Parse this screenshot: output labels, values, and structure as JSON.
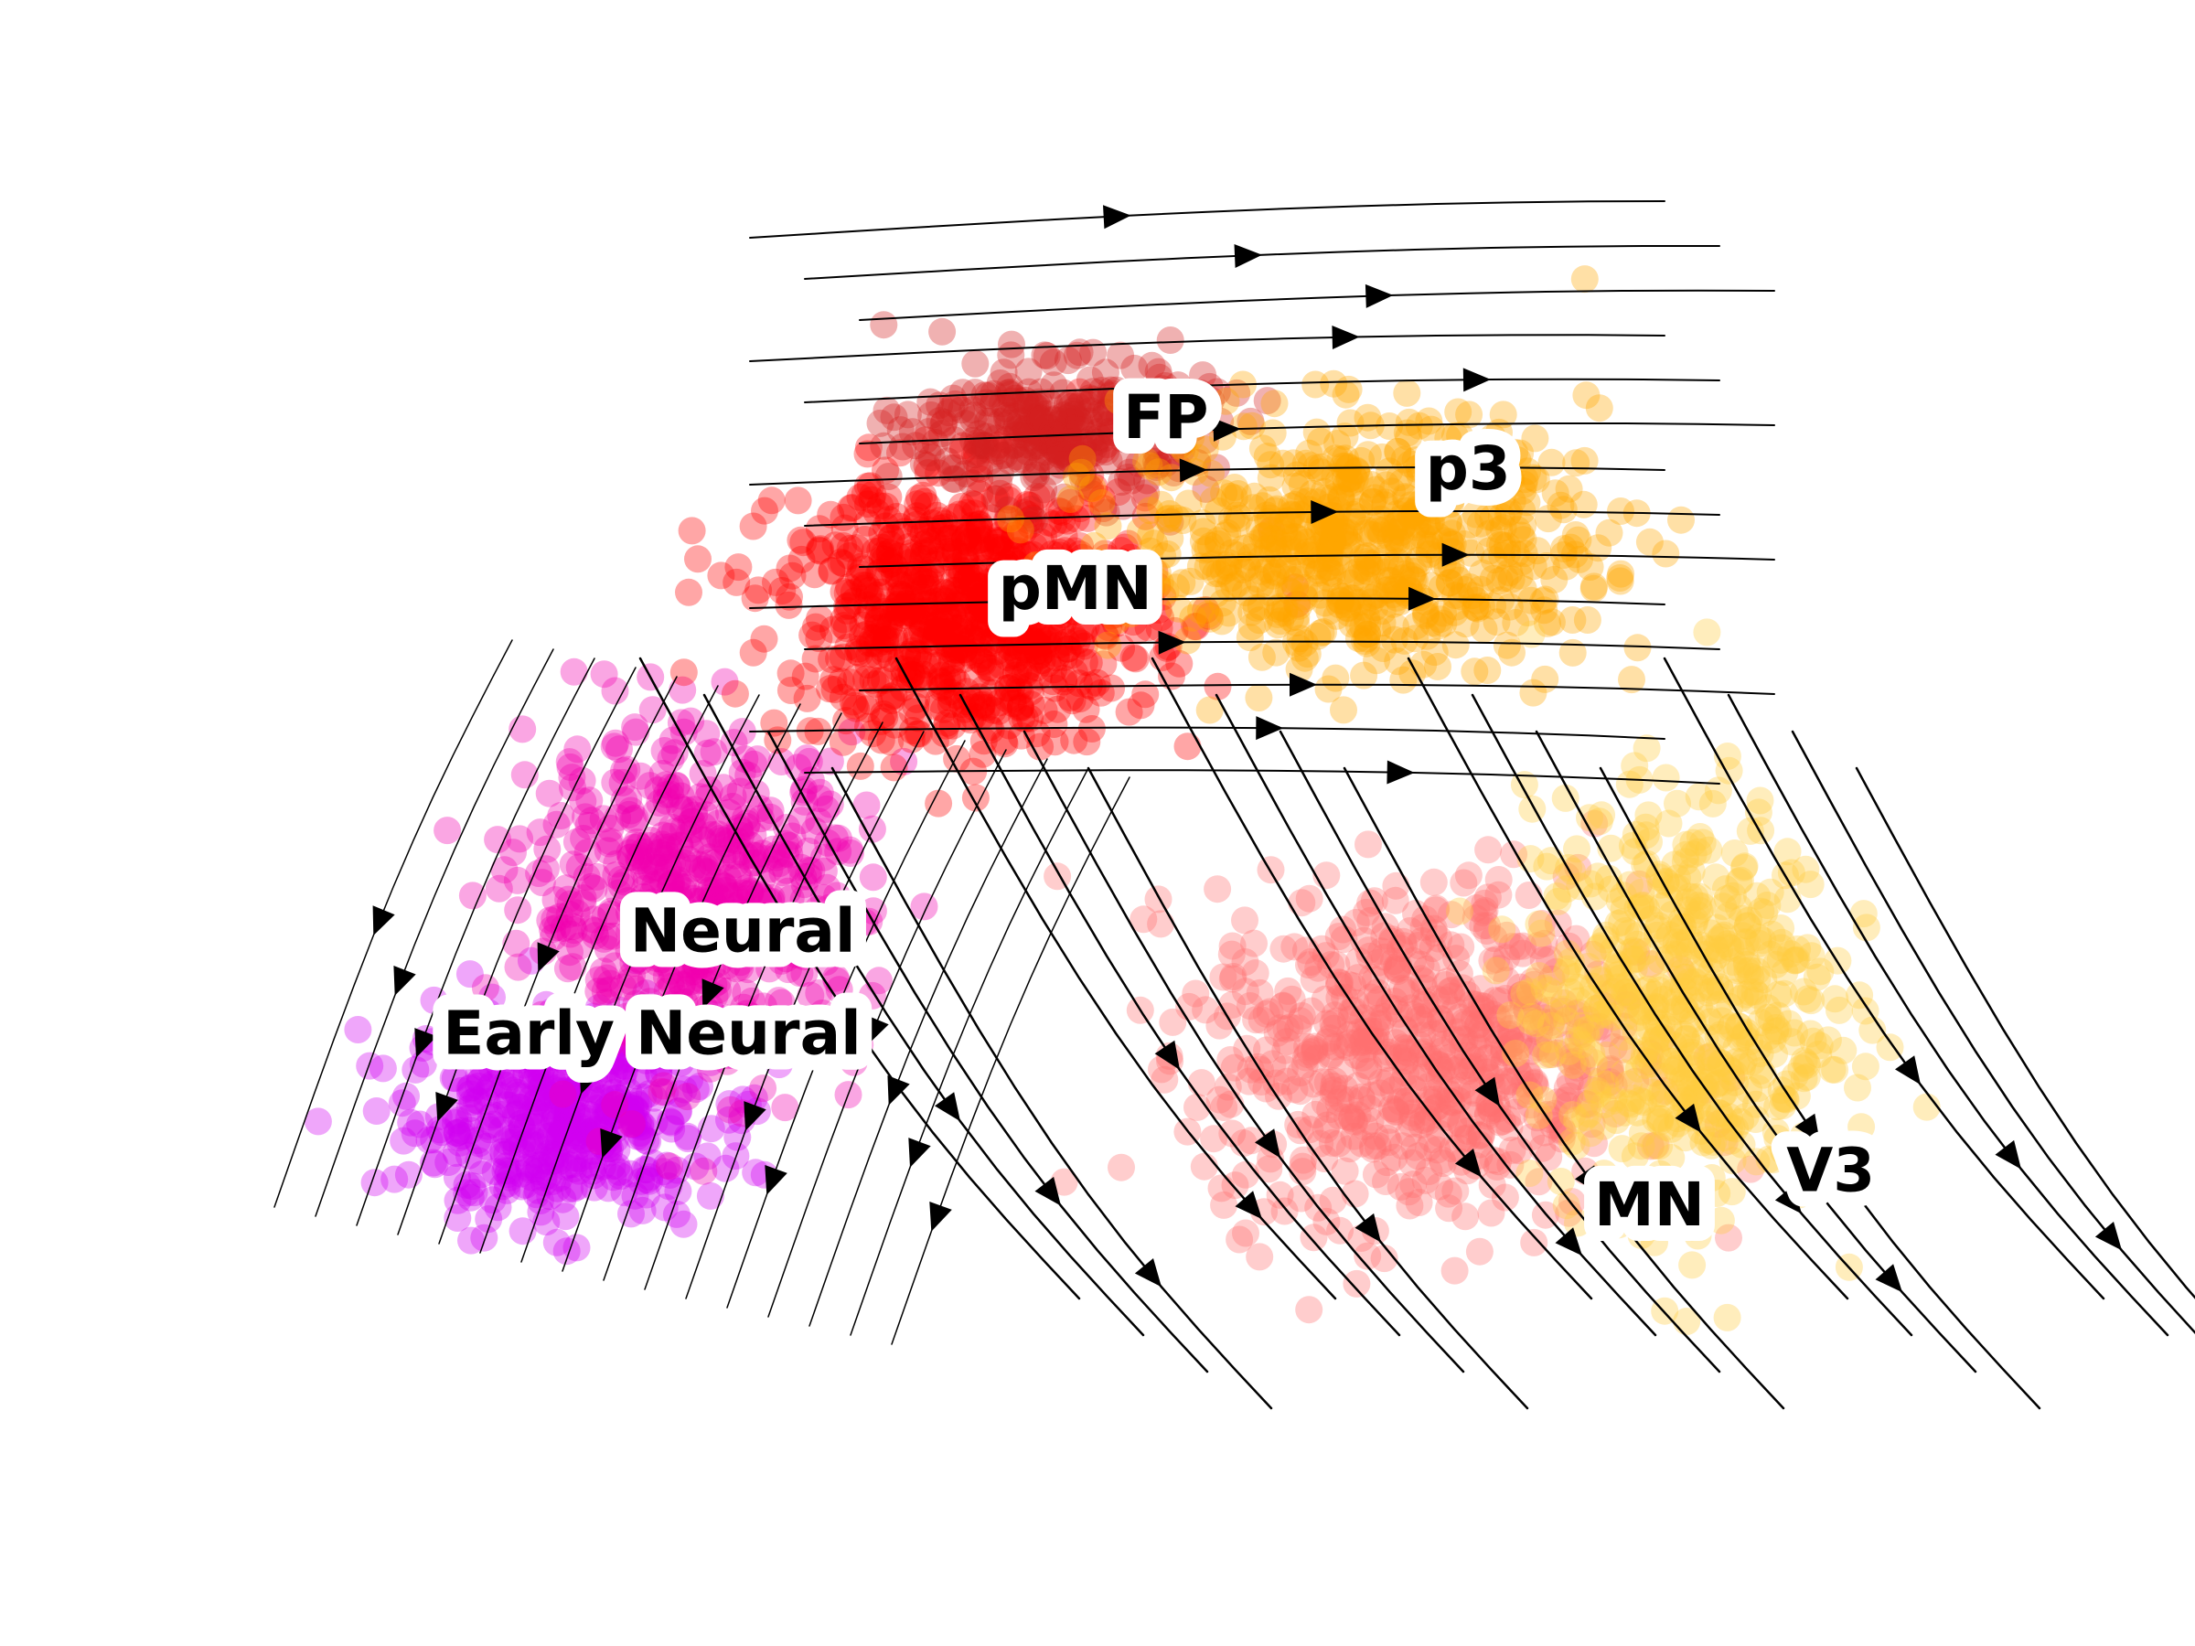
{
  "chart_data": {
    "type": "scatter",
    "title": "",
    "xlabel": "",
    "ylabel": "",
    "grid": false,
    "legend": "none",
    "overlay": "velocity streamlines",
    "clusters": [
      {
        "name": "Early Neural",
        "color": "#d000f0",
        "center": [
          -3.6,
          -1.75
        ],
        "spread": [
          0.9,
          0.55
        ],
        "count": 520
      },
      {
        "name": "Neural",
        "color": "#f000b0",
        "center": [
          -2.7,
          -0.5
        ],
        "spread": [
          1.0,
          0.85
        ],
        "count": 620
      },
      {
        "name": "pMN",
        "color": "#ff0000",
        "center": [
          -0.9,
          1.2
        ],
        "spread": [
          1.1,
          0.7
        ],
        "count": 900
      },
      {
        "name": "FP",
        "color": "#d42020",
        "center": [
          -0.3,
          2.25
        ],
        "spread": [
          0.9,
          0.35
        ],
        "count": 320
      },
      {
        "name": "p3",
        "color": "#ffa500",
        "center": [
          1.7,
          1.6
        ],
        "spread": [
          1.4,
          0.65
        ],
        "count": 700
      },
      {
        "name": "MN",
        "color": "#ff7070",
        "center": [
          2.1,
          -1.4
        ],
        "spread": [
          1.3,
          0.9
        ],
        "count": 700
      },
      {
        "name": "V3",
        "color": "#ffcc40",
        "center": [
          3.8,
          -1.1
        ],
        "spread": [
          0.9,
          1.1
        ],
        "count": 600
      }
    ],
    "labels": [
      {
        "text": "FP",
        "x": 0.4,
        "y": 2.3
      },
      {
        "text": "p3",
        "x": 2.4,
        "y": 2.0
      },
      {
        "text": "pMN",
        "x": -0.2,
        "y": 1.3
      },
      {
        "text": "Neural",
        "x": -2.4,
        "y": -0.7
      },
      {
        "text": "Early Neural",
        "x": -3.0,
        "y": -1.3
      },
      {
        "text": "MN",
        "x": 3.6,
        "y": -2.3
      },
      {
        "text": "V3",
        "x": 4.8,
        "y": -2.1
      }
    ],
    "xlim": [
      -5.5,
      6.0
    ],
    "ylim": [
      -4.0,
      3.8
    ]
  }
}
